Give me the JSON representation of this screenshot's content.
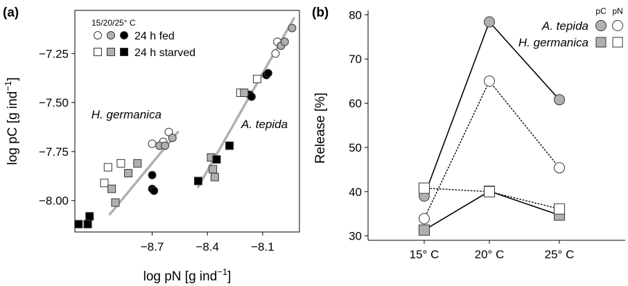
{
  "chart_data": [
    {
      "type": "scatter",
      "panel_label": "(a)",
      "xlabel_main": "log pN [g ind",
      "xlabel_sup": "−1",
      "xlabel_end": "]",
      "ylabel_main": "log pC [g ind",
      "ylabel_sup": "−1",
      "ylabel_end": "]",
      "xlim": [
        -9.12,
        -7.9
      ],
      "ylim": [
        -8.16,
        -7.03
      ],
      "x_ticks": [
        -8.7,
        -8.4,
        -8.1
      ],
      "x_tick_labels": [
        "−8.7",
        "−8.4",
        "−8.1"
      ],
      "y_ticks": [
        -8.0,
        -7.75,
        -7.5,
        -7.25
      ],
      "y_tick_labels": [
        "−8.00",
        "−7.75",
        "−7.50",
        "−7.25"
      ],
      "legend": {
        "header": "15/20/25° C",
        "fed_label": "24 h fed",
        "starved_label": "24 h starved",
        "temperature_fills": [
          "#ffffff",
          "#b0b0b0",
          "#000000"
        ]
      },
      "annotations": [
        {
          "text": "H. germanica",
          "x": -8.84,
          "y": -7.58
        },
        {
          "text": "A. tepida",
          "x": -8.09,
          "y": -7.63
        }
      ],
      "trend_lines": [
        {
          "name": "H. germanica",
          "x": [
            -8.93,
            -8.56
          ],
          "y": [
            -8.07,
            -7.65
          ]
        },
        {
          "name": "A. tepida",
          "x": [
            -8.45,
            -7.93
          ],
          "y": [
            -7.93,
            -7.07
          ]
        }
      ],
      "series": [
        {
          "group": "fed",
          "temperature": "15",
          "marker": "circle",
          "fill": "#ffffff",
          "points": [
            [
              -8.7,
              -7.71
            ],
            [
              -8.64,
              -7.7
            ],
            [
              -8.61,
              -7.65
            ],
            [
              -8.03,
              -7.25
            ],
            [
              -8.02,
              -7.19
            ]
          ]
        },
        {
          "group": "fed",
          "temperature": "20",
          "marker": "circle",
          "fill": "#b0b0b0",
          "points": [
            [
              -8.66,
              -7.72
            ],
            [
              -8.63,
              -7.72
            ],
            [
              -8.59,
              -7.68
            ],
            [
              -8.0,
              -7.21
            ],
            [
              -7.98,
              -7.19
            ],
            [
              -7.94,
              -7.12
            ]
          ]
        },
        {
          "group": "fed",
          "temperature": "25",
          "marker": "circle",
          "fill": "#000000",
          "points": [
            [
              -8.7,
              -7.87
            ],
            [
              -8.7,
              -7.94
            ],
            [
              -8.69,
              -7.95
            ],
            [
              -8.17,
              -7.46
            ],
            [
              -8.16,
              -7.47
            ],
            [
              -8.08,
              -7.36
            ],
            [
              -8.07,
              -7.35
            ]
          ]
        },
        {
          "group": "starved",
          "temperature": "15",
          "marker": "square",
          "fill": "#ffffff",
          "points": [
            [
              -8.96,
              -7.91
            ],
            [
              -8.94,
              -7.83
            ],
            [
              -8.87,
              -7.81
            ],
            [
              -8.22,
              -7.45
            ],
            [
              -8.13,
              -7.38
            ]
          ]
        },
        {
          "group": "starved",
          "temperature": "20",
          "marker": "square",
          "fill": "#b0b0b0",
          "points": [
            [
              -8.92,
              -7.94
            ],
            [
              -8.9,
              -8.01
            ],
            [
              -8.83,
              -7.86
            ],
            [
              -8.78,
              -7.81
            ],
            [
              -8.38,
              -7.78
            ],
            [
              -8.37,
              -7.84
            ],
            [
              -8.36,
              -7.88
            ],
            [
              -8.2,
              -7.45
            ]
          ]
        },
        {
          "group": "starved",
          "temperature": "25",
          "marker": "square",
          "fill": "#000000",
          "points": [
            [
              -9.1,
              -8.12
            ],
            [
              -9.05,
              -8.12
            ],
            [
              -9.04,
              -8.08
            ],
            [
              -8.45,
              -7.9
            ],
            [
              -8.35,
              -7.79
            ],
            [
              -8.28,
              -7.72
            ]
          ]
        }
      ]
    },
    {
      "type": "line",
      "panel_label": "(b)",
      "ylabel": "Release [%]",
      "categories": [
        "15° C",
        "20° C",
        "25° C"
      ],
      "ylim": [
        29,
        81
      ],
      "y_ticks": [
        30,
        40,
        50,
        60,
        70,
        80
      ],
      "y_tick_labels": [
        "30",
        "40",
        "50",
        "60",
        "70",
        "80"
      ],
      "legend": {
        "pC_label": "pC",
        "pN_label": "pN"
      },
      "series": [
        {
          "name": "A. tepida",
          "measure": "pC",
          "marker": "circle",
          "fill": "#b0b0b0",
          "line": "solid",
          "values": [
            39,
            78.4,
            60.8
          ]
        },
        {
          "name": "A. tepida",
          "measure": "pN",
          "marker": "circle",
          "fill": "#ffffff",
          "line": "dotted",
          "values": [
            33.9,
            65,
            45.4
          ]
        },
        {
          "name": "H. germanica",
          "measure": "pC",
          "marker": "square",
          "fill": "#b0b0b0",
          "line": "solid",
          "values": [
            31.3,
            40.1,
            34.7
          ]
        },
        {
          "name": "H. germanica",
          "measure": "pN",
          "marker": "square",
          "fill": "#ffffff",
          "line": "dotted",
          "values": [
            40.8,
            40,
            36.1
          ]
        }
      ]
    }
  ]
}
